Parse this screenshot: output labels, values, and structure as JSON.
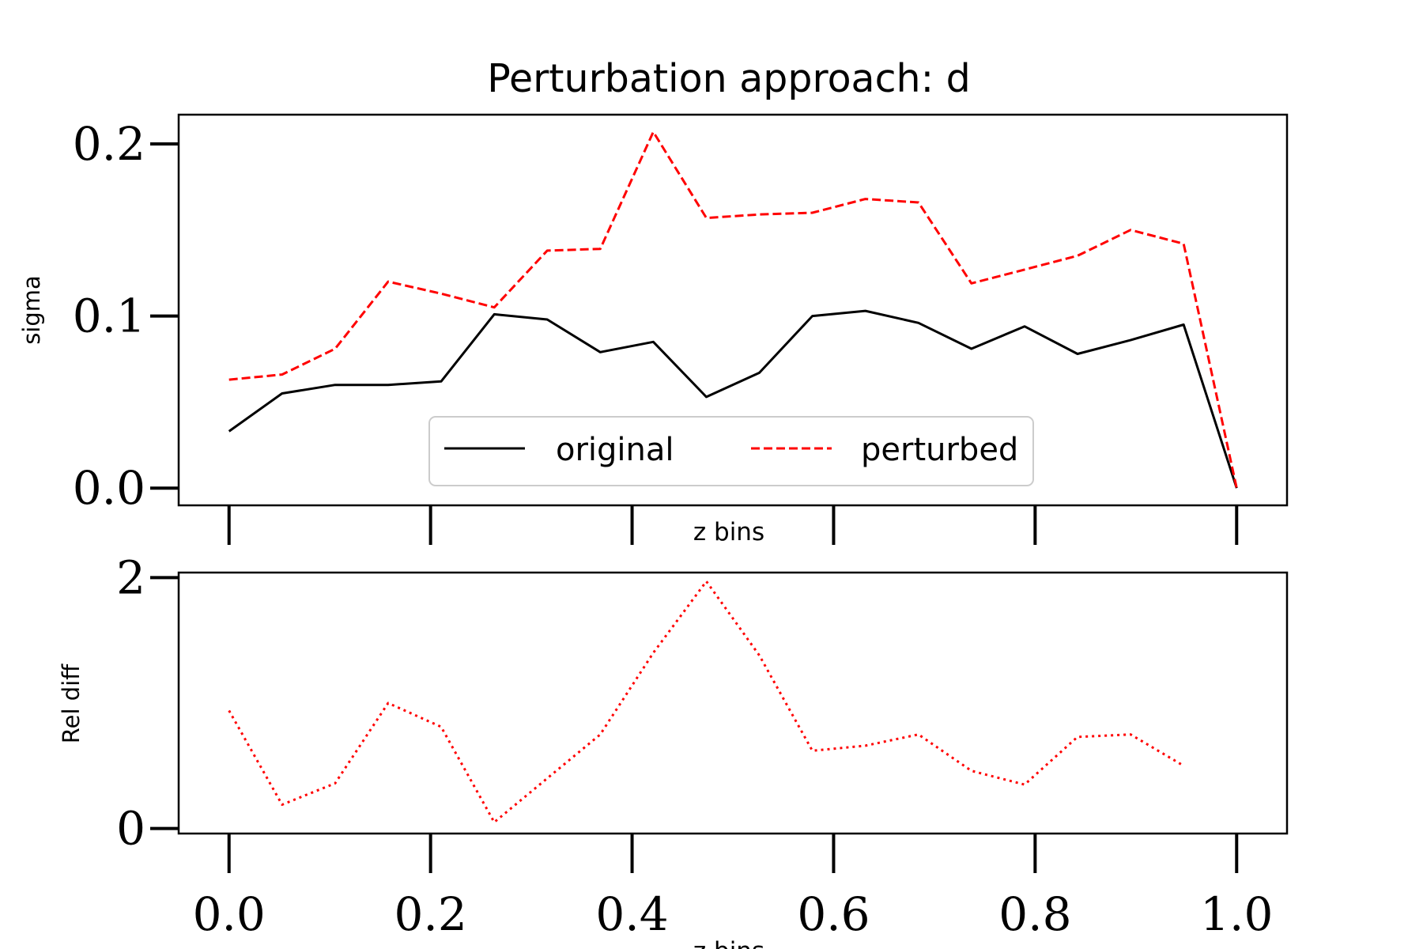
{
  "chart_data": [
    {
      "type": "line",
      "title": "Perturbation approach: d",
      "xlabel": "z bins",
      "ylabel": "sigma",
      "xlim": [
        -0.05,
        1.05
      ],
      "ylim": [
        -0.01,
        0.217
      ],
      "yticks": [
        0.0,
        0.1,
        0.2
      ],
      "ytick_labels": [
        "0.0",
        "0.1",
        "0.2"
      ],
      "xticks": [
        0.0,
        0.2,
        0.4,
        0.6,
        0.8,
        1.0
      ],
      "grid": false,
      "legend": {
        "placement": "lower-center",
        "columns": 2
      },
      "x": [
        0.0,
        0.0526,
        0.1053,
        0.1579,
        0.2105,
        0.2632,
        0.3158,
        0.3684,
        0.4211,
        0.4737,
        0.5263,
        0.5789,
        0.6316,
        0.6842,
        0.7368,
        0.7895,
        0.8421,
        0.8947,
        0.9474,
        1.0
      ],
      "series": [
        {
          "name": "original",
          "color": "#000000",
          "style": "solid",
          "values": [
            0.033,
            0.055,
            0.06,
            0.06,
            0.062,
            0.101,
            0.098,
            0.079,
            0.085,
            0.053,
            0.067,
            0.1,
            0.103,
            0.096,
            0.081,
            0.094,
            0.078,
            0.086,
            0.095,
            0.0
          ]
        },
        {
          "name": "perturbed",
          "color": "#ff0000",
          "style": "dashed",
          "values": [
            0.063,
            0.066,
            0.081,
            0.12,
            0.113,
            0.105,
            0.138,
            0.139,
            0.207,
            0.157,
            0.159,
            0.16,
            0.168,
            0.166,
            0.119,
            0.127,
            0.135,
            0.15,
            0.142,
            0.0
          ]
        }
      ]
    },
    {
      "type": "line",
      "xlabel": "z bins",
      "ylabel": "Rel diff",
      "xlim": [
        -0.05,
        1.05
      ],
      "ylim": [
        -0.04,
        2.04
      ],
      "yticks": [
        0,
        2
      ],
      "ytick_labels": [
        "0",
        "2"
      ],
      "xticks": [
        0.0,
        0.2,
        0.4,
        0.6,
        0.8,
        1.0
      ],
      "xtick_labels": [
        "0.0",
        "0.2",
        "0.4",
        "0.6",
        "0.8",
        "1.0"
      ],
      "grid": false,
      "x": [
        0.0,
        0.0526,
        0.1053,
        0.1579,
        0.2105,
        0.2632,
        0.3158,
        0.3684,
        0.4211,
        0.4737,
        0.5263,
        0.5789,
        0.6316,
        0.6842,
        0.7368,
        0.7895,
        0.8421,
        0.8947,
        0.9474
      ],
      "series": [
        {
          "color": "#ff0000",
          "style": "dotted",
          "values": [
            0.94,
            0.19,
            0.36,
            1.0,
            0.81,
            0.05,
            0.4,
            0.75,
            1.4,
            1.97,
            1.38,
            0.62,
            0.66,
            0.75,
            0.46,
            0.35,
            0.73,
            0.75,
            0.5
          ]
        }
      ]
    }
  ]
}
